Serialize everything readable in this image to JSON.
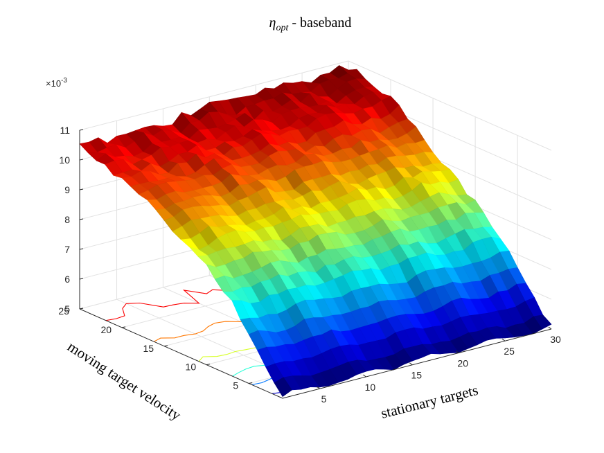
{
  "chart_data": {
    "type": "surface3d",
    "title_symbol": "η",
    "title_subscript": "opt",
    "title_rest": " - baseband",
    "xlabel": "stationary targets",
    "ylabel": "moving target velocity",
    "zlabel": "",
    "z_multiplier": "×10",
    "z_multiplier_exp": "-3",
    "xlim": [
      1,
      30
    ],
    "ylim": [
      1,
      25
    ],
    "zlim": [
      0.005,
      0.011
    ],
    "x_ticks": [
      "5",
      "10",
      "15",
      "20",
      "25",
      "30"
    ],
    "y_ticks": [
      "5",
      "10",
      "15",
      "20",
      "25"
    ],
    "z_ticks": [
      "5",
      "6",
      "7",
      "8",
      "9",
      "10",
      "11"
    ],
    "colormap": "jet",
    "grid": true,
    "contour_projection": true,
    "x": [
      1,
      30
    ],
    "y": [
      1,
      25
    ],
    "z_at_x1": [
      0.0051,
      0.0054,
      0.0058,
      0.0062,
      0.0066,
      0.007,
      0.0074,
      0.0077,
      0.008,
      0.0083,
      0.0085,
      0.0087,
      0.0089,
      0.0091,
      0.0093,
      0.0095,
      0.0096,
      0.0097,
      0.0098,
      0.0099,
      0.01,
      0.0101,
      0.0102,
      0.0103,
      0.0105
    ],
    "z_at_x30": [
      0.0051,
      0.0053,
      0.0057,
      0.0061,
      0.0065,
      0.0069,
      0.0073,
      0.0076,
      0.0079,
      0.0082,
      0.0084,
      0.0087,
      0.0089,
      0.0091,
      0.0093,
      0.0095,
      0.0097,
      0.0099,
      0.0101,
      0.0103,
      0.0104,
      0.0105,
      0.0106,
      0.0107,
      0.0108
    ]
  }
}
